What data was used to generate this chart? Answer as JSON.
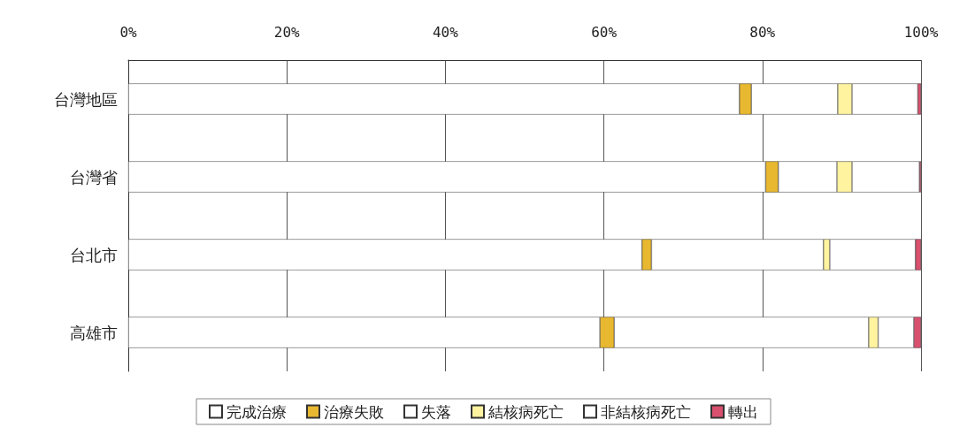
{
  "chart_data": {
    "type": "bar",
    "orientation": "horizontal",
    "stacked": true,
    "categories": [
      "台灣地區",
      "台灣省",
      "台北市",
      "高雄市"
    ],
    "series": [
      {
        "name": "完成治療",
        "color": "#ffffff",
        "values": [
          77.1,
          80.4,
          64.8,
          59.5
        ]
      },
      {
        "name": "治療失敗",
        "color": "#e8b830",
        "values": [
          1.5,
          1.6,
          1.2,
          1.8
        ]
      },
      {
        "name": "失落",
        "color": "#ffffff",
        "values": [
          10.9,
          7.4,
          21.7,
          32.1
        ]
      },
      {
        "name": "結核病死亡",
        "color": "#fff3a0",
        "values": [
          1.8,
          1.9,
          0.8,
          1.2
        ]
      },
      {
        "name": "非結核病死亡",
        "color": "#ffffff",
        "values": [
          8.3,
          8.5,
          10.8,
          4.5
        ]
      },
      {
        "name": "轉出",
        "color": "#d9506e",
        "values": [
          0.4,
          0.2,
          0.7,
          0.9
        ]
      }
    ],
    "xlim": [
      0,
      100
    ],
    "xticks": [
      {
        "value": 0,
        "label": "0%"
      },
      {
        "value": 20,
        "label": "20%"
      },
      {
        "value": 40,
        "label": "40%"
      },
      {
        "value": 60,
        "label": "60%"
      },
      {
        "value": 80,
        "label": "80%"
      },
      {
        "value": 100,
        "label": "100%"
      }
    ],
    "grid": "x",
    "legend": "bottom"
  }
}
